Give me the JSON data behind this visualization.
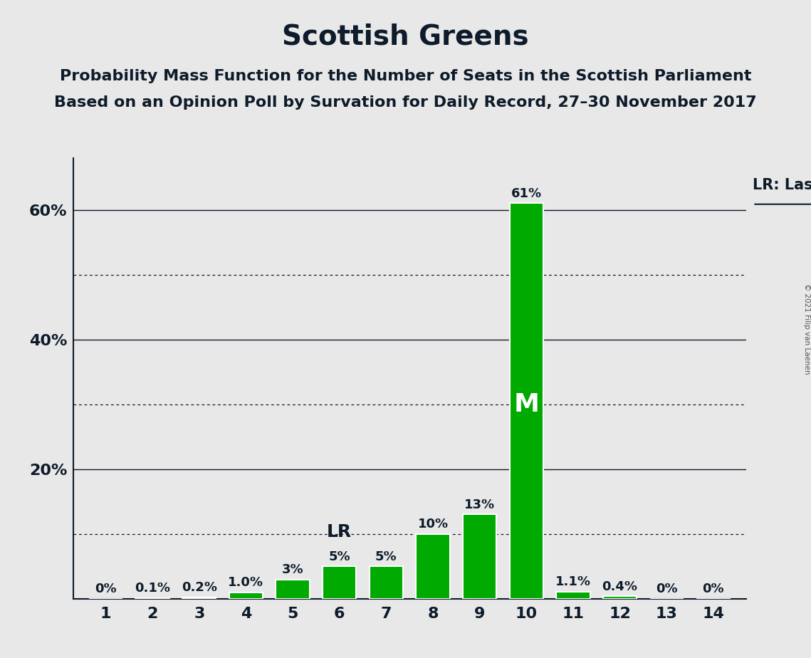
{
  "title": "Scottish Greens",
  "subtitle1": "Probability Mass Function for the Number of Seats in the Scottish Parliament",
  "subtitle2": "Based on an Opinion Poll by Survation for Daily Record, 27–30 November 2017",
  "copyright": "© 2021 Filip van Laenen",
  "categories": [
    1,
    2,
    3,
    4,
    5,
    6,
    7,
    8,
    9,
    10,
    11,
    12,
    13,
    14
  ],
  "values": [
    0.0,
    0.1,
    0.2,
    1.0,
    3.0,
    5.0,
    5.0,
    10.0,
    13.0,
    61.0,
    1.1,
    0.4,
    0.0,
    0.0
  ],
  "bar_color": "#00aa00",
  "bar_edge_color": "#ffffff",
  "background_color": "#e8e8e8",
  "label_format": [
    "0%",
    "0.1%",
    "0.2%",
    "1.0%",
    "3%",
    "5%",
    "5%",
    "10%",
    "13%",
    "61%",
    "1.1%",
    "0.4%",
    "0%",
    "0%"
  ],
  "last_result_x": 6,
  "median_x": 10,
  "yticks": [
    0,
    20,
    40,
    60
  ],
  "ytick_labels": [
    "",
    "20%",
    "40%",
    "60%"
  ],
  "dotted_lines": [
    10,
    30,
    50
  ],
  "solid_lines": [
    20,
    40,
    60
  ],
  "ylim": [
    0,
    68
  ],
  "xlim": [
    0.3,
    14.7
  ],
  "title_fontsize": 28,
  "subtitle_fontsize": 16,
  "label_fontsize": 13,
  "tick_fontsize": 16,
  "legend_fontsize": 15,
  "text_color": "#0d1b2a",
  "grid_color": "#1a1a2e",
  "lr_label_fontsize": 18,
  "m_label_fontsize": 26
}
